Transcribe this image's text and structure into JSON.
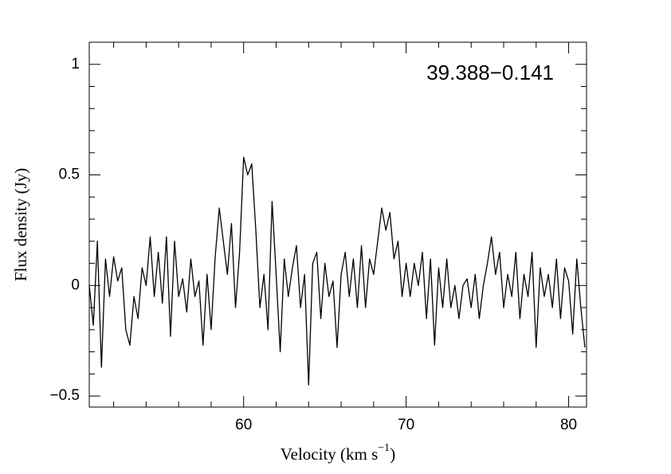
{
  "chart_data": {
    "type": "line",
    "title": "39.388−0.141",
    "xlabel": [
      "Velocity (km s",
      "−1",
      ")"
    ],
    "ylabel": "Flux density (Jy)",
    "color": "#000000",
    "x": [
      50.5,
      50.75,
      51.0,
      51.25,
      51.5,
      51.75,
      52.0,
      52.25,
      52.5,
      52.75,
      53.0,
      53.25,
      53.5,
      53.75,
      54.0,
      54.25,
      54.5,
      54.75,
      55.0,
      55.25,
      55.5,
      55.75,
      56.0,
      56.25,
      56.5,
      56.75,
      57.0,
      57.25,
      57.5,
      57.75,
      58.0,
      58.25,
      58.5,
      58.75,
      59.0,
      59.25,
      59.5,
      59.75,
      60.0,
      60.25,
      60.5,
      60.75,
      61.0,
      61.25,
      61.5,
      61.75,
      62.0,
      62.25,
      62.5,
      62.75,
      63.0,
      63.25,
      63.5,
      63.75,
      64.0,
      64.25,
      64.5,
      64.75,
      65.0,
      65.25,
      65.5,
      65.75,
      66.0,
      66.25,
      66.5,
      66.75,
      67.0,
      67.25,
      67.5,
      67.75,
      68.0,
      68.25,
      68.5,
      68.75,
      69.0,
      69.25,
      69.5,
      69.75,
      70.0,
      70.25,
      70.5,
      70.75,
      71.0,
      71.25,
      71.5,
      71.75,
      72.0,
      72.25,
      72.5,
      72.75,
      73.0,
      73.25,
      73.5,
      73.75,
      74.0,
      74.25,
      74.5,
      74.75,
      75.0,
      75.25,
      75.5,
      75.75,
      76.0,
      76.25,
      76.5,
      76.75,
      77.0,
      77.25,
      77.5,
      77.75,
      78.0,
      78.25,
      78.5,
      78.75,
      79.0,
      79.25,
      79.5,
      79.75,
      80.0,
      80.25,
      80.5,
      80.75,
      81.0
    ],
    "values": [
      0.0,
      -0.18,
      0.2,
      -0.37,
      0.12,
      -0.05,
      0.13,
      0.02,
      0.08,
      -0.2,
      -0.27,
      -0.05,
      -0.15,
      0.08,
      0.0,
      0.22,
      -0.05,
      0.15,
      -0.08,
      0.22,
      -0.23,
      0.2,
      -0.05,
      0.03,
      -0.12,
      0.12,
      -0.05,
      0.02,
      -0.27,
      0.05,
      -0.2,
      0.13,
      0.35,
      0.2,
      0.05,
      0.28,
      -0.1,
      0.15,
      0.58,
      0.5,
      0.55,
      0.25,
      -0.1,
      0.05,
      -0.2,
      0.38,
      0.05,
      -0.3,
      0.12,
      -0.05,
      0.08,
      0.18,
      -0.1,
      0.05,
      -0.45,
      0.1,
      0.15,
      -0.15,
      0.1,
      -0.05,
      0.02,
      -0.28,
      0.05,
      0.15,
      -0.05,
      0.12,
      -0.1,
      0.18,
      -0.1,
      0.12,
      0.05,
      0.2,
      0.35,
      0.25,
      0.33,
      0.12,
      0.2,
      -0.05,
      0.1,
      -0.05,
      0.1,
      0.0,
      0.15,
      -0.15,
      0.12,
      -0.27,
      0.08,
      -0.1,
      0.12,
      -0.1,
      0.0,
      -0.15,
      0.0,
      0.03,
      -0.1,
      0.05,
      -0.15,
      0.0,
      0.1,
      0.22,
      0.05,
      0.15,
      -0.1,
      0.05,
      -0.05,
      0.15,
      -0.15,
      0.05,
      -0.05,
      0.15,
      -0.28,
      0.08,
      -0.05,
      0.05,
      -0.1,
      0.12,
      -0.15,
      0.08,
      0.02,
      -0.22,
      0.12,
      -0.1,
      -0.28
    ],
    "xlim": [
      50.5,
      81.1
    ],
    "ylim": [
      -0.55,
      1.1
    ],
    "xticks": [
      60,
      70,
      80
    ],
    "yticks": [
      {
        "value": -0.5,
        "label": "−0.5"
      },
      0,
      0.5,
      1
    ],
    "xminorticks": [
      52,
      54,
      56,
      58,
      62,
      64,
      66,
      68,
      72,
      74,
      76,
      78
    ],
    "yminorticks": [
      -0.4,
      -0.3,
      -0.2,
      -0.1,
      0.1,
      0.2,
      0.3,
      0.4,
      0.6,
      0.7,
      0.8,
      0.9
    ]
  }
}
